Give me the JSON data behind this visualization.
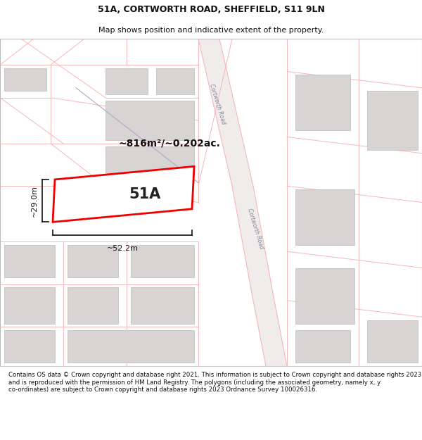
{
  "title": "51A, CORTWORTH ROAD, SHEFFIELD, S11 9LN",
  "subtitle": "Map shows position and indicative extent of the property.",
  "footer": "Contains OS data © Crown copyright and database right 2021. This information is subject to Crown copyright and database rights 2023 and is reproduced with the permission of HM Land Registry. The polygons (including the associated geometry, namely x, y co-ordinates) are subject to Crown copyright and database rights 2023 Ordnance Survey 100026316.",
  "area_label": "~816m²/~0.202ac.",
  "width_label": "~52.2m",
  "height_label": "~29.0m",
  "plot_label": "51A",
  "bg_color": "#ffffff",
  "map_bg": "#ffffff",
  "building_color": "#d8d4d4",
  "plot_fill": "#ffffff",
  "plot_edge": "#ee0000",
  "boundary_color": "#f5b8b8",
  "road_band_color": "#ece8e8",
  "road_text_color": "#888899",
  "dim_color": "#111111",
  "blue_line_color": "#aaaacc",
  "title_fontsize": 9,
  "subtitle_fontsize": 8,
  "footer_fontsize": 6.2,
  "title_fontweight": "bold"
}
